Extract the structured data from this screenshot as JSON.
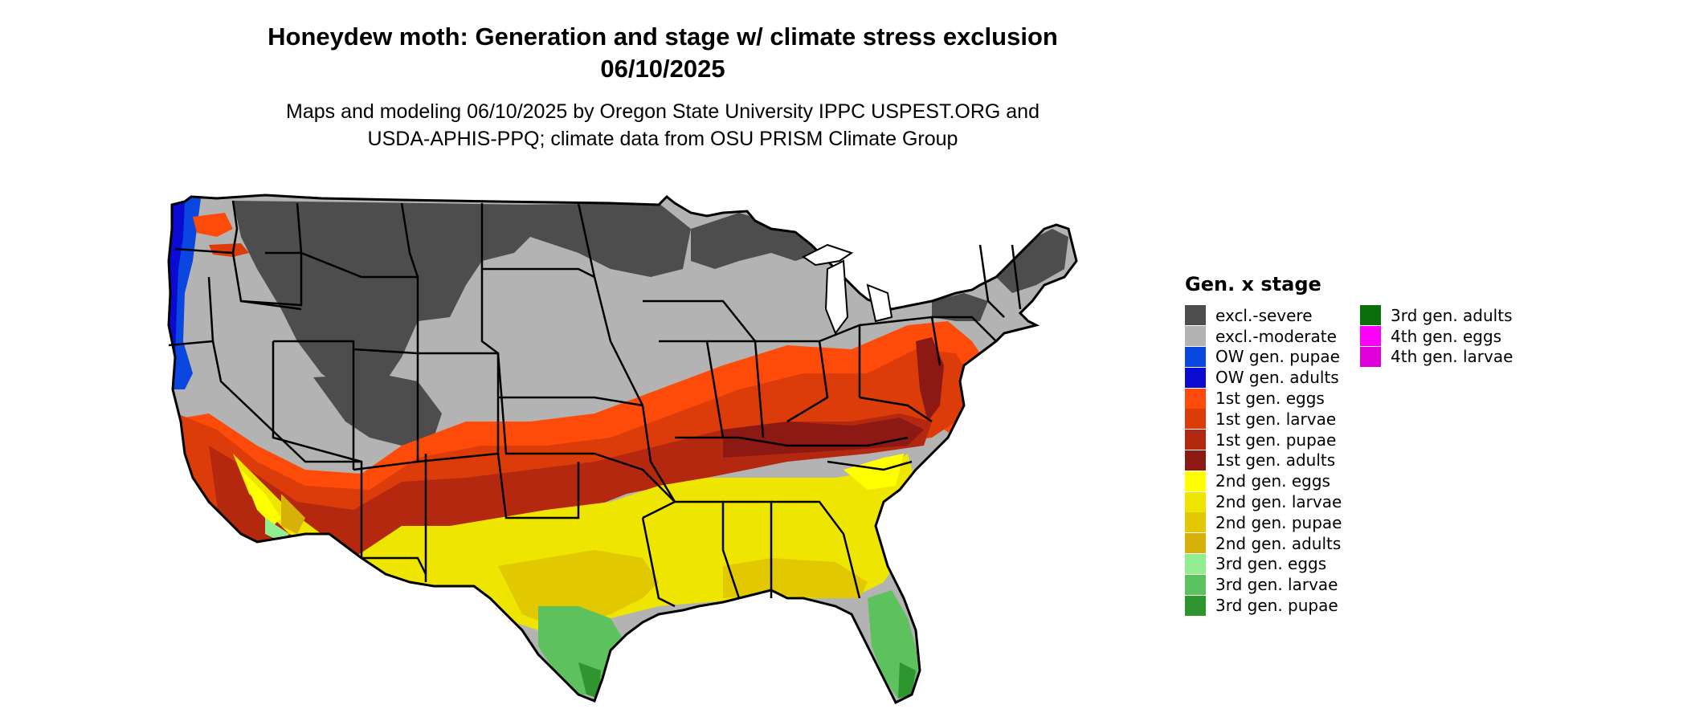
{
  "title_line1": "Honeydew moth: Generation and stage w/ climate stress exclusion",
  "title_line2": "06/10/2025",
  "subtitle_line1": "Maps and modeling 06/10/2025 by Oregon State University IPPC USPEST.ORG and",
  "subtitle_line2": "USDA-APHIS-PPQ; climate data from OSU PRISM Climate Group",
  "legend": {
    "title": "Gen. x stage",
    "items": [
      {
        "label": "excl.-severe",
        "color": "#4d4d4d"
      },
      {
        "label": "excl.-moderate",
        "color": "#b3b3b3"
      },
      {
        "label": "OW gen. pupae",
        "color": "#0a46e0"
      },
      {
        "label": "OW gen. adults",
        "color": "#0a0ad2"
      },
      {
        "label": "1st gen. eggs",
        "color": "#ff4b0a"
      },
      {
        "label": "1st gen. larvae",
        "color": "#dc3c0a"
      },
      {
        "label": "1st gen. pupae",
        "color": "#b4280f"
      },
      {
        "label": "1st gen. adults",
        "color": "#8c1914"
      },
      {
        "label": "2nd gen. eggs",
        "color": "#ffff00"
      },
      {
        "label": "2nd gen. larvae",
        "color": "#eee600"
      },
      {
        "label": "2nd gen. pupae",
        "color": "#e1c800"
      },
      {
        "label": "2nd gen. adults",
        "color": "#d7b00a"
      },
      {
        "label": "3rd gen. eggs",
        "color": "#90ee90"
      },
      {
        "label": "3rd gen. larvae",
        "color": "#5dc15d"
      },
      {
        "label": "3rd gen. pupae",
        "color": "#2f962f"
      },
      {
        "label": "3rd gen. adults",
        "color": "#0a6e0a"
      },
      {
        "label": "4th gen. eggs",
        "color": "#ff00ff"
      },
      {
        "label": "4th gen. larvae",
        "color": "#e000dc"
      }
    ]
  }
}
